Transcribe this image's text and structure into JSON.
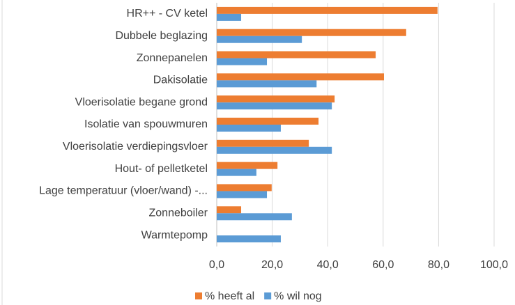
{
  "chart_data": {
    "type": "hbar",
    "categories": [
      "HR++ - CV ketel",
      "Dubbele beglazing",
      "Zonnepanelen",
      "Dakisolatie",
      "Vloerisolatie begane grond",
      "Isolatie van spouwmuren",
      "Vloerisolatie verdiepingsvloer",
      "Hout- of pelletketel",
      "Lage temperatuur (vloer/wand) -...",
      "Zonneboiler",
      "Warmtepomp"
    ],
    "series": [
      {
        "name": "% heeft al",
        "color": "#ed7d31",
        "values": [
          79.6,
          68.3,
          57.3,
          60.3,
          42.5,
          36.7,
          33.2,
          21.9,
          19.8,
          8.8,
          0
        ]
      },
      {
        "name": "% wil nog",
        "color": "#5b9bd5",
        "values": [
          8.8,
          30.7,
          18.1,
          36,
          41.5,
          23.1,
          41.5,
          14.3,
          18.1,
          27.1,
          23.1
        ]
      }
    ],
    "xlim": [
      0,
      100
    ],
    "xticks": [
      {
        "value": 0,
        "label": "0,0"
      },
      {
        "value": 20,
        "label": "20,0"
      },
      {
        "value": 40,
        "label": "40,0"
      },
      {
        "value": 60,
        "label": "60,0"
      },
      {
        "value": 80,
        "label": "80,0"
      },
      {
        "value": 100,
        "label": "100,0"
      }
    ],
    "grid": true,
    "legend": "bottom"
  }
}
